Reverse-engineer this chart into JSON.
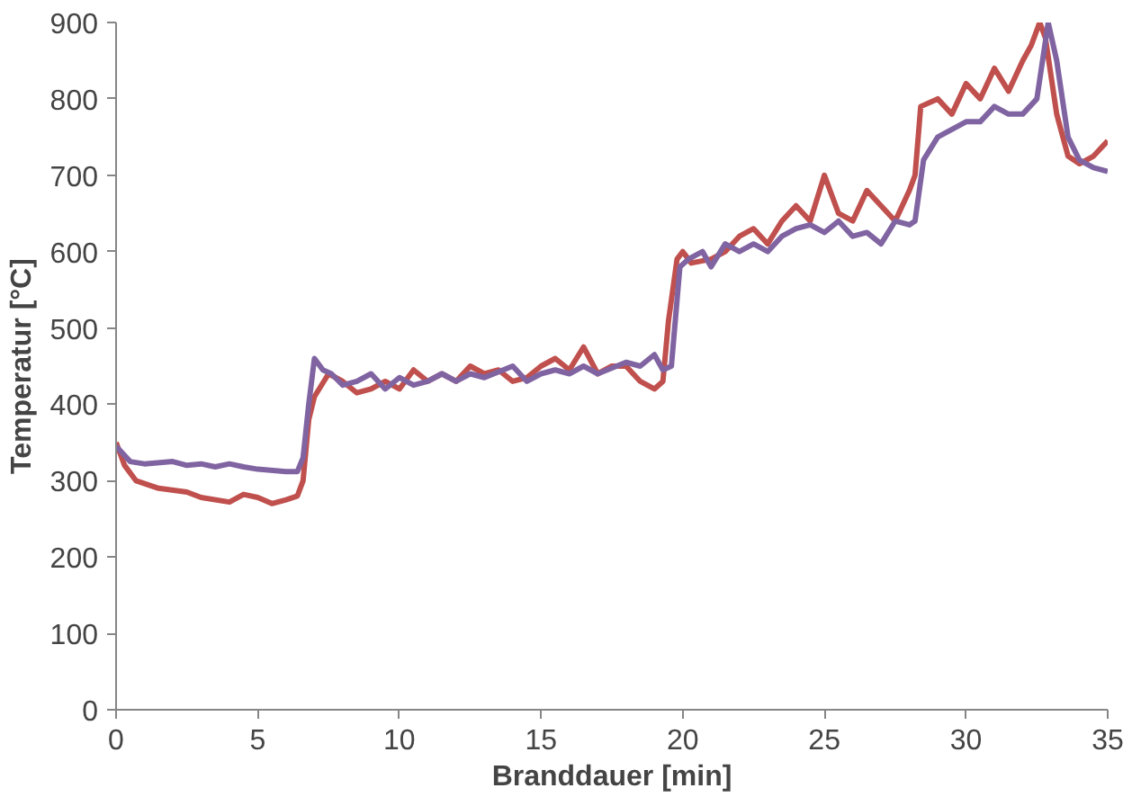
{
  "chart_data": {
    "type": "line",
    "xlabel": "Branddauer [min]",
    "ylabel": "Temperatur [°C]",
    "xlim": [
      0,
      35
    ],
    "xticks": [
      0,
      5,
      10,
      15,
      20,
      25,
      30,
      35
    ],
    "ylim": [
      0,
      900
    ],
    "yticks": [
      0,
      100,
      200,
      300,
      400,
      500,
      600,
      700,
      800,
      900
    ],
    "grid": false,
    "line_style": "solid",
    "series": [
      {
        "color": "#c0504d",
        "x": [
          0,
          0.3,
          0.7,
          1.5,
          2.5,
          3,
          4,
          4.5,
          5,
          5.5,
          6,
          6.4,
          6.6,
          6.8,
          7,
          7.5,
          8,
          8.5,
          9,
          9.5,
          10,
          10.5,
          11,
          11.5,
          12,
          12.5,
          13,
          13.5,
          14,
          14.5,
          15,
          15.5,
          16,
          16.5,
          17,
          17.5,
          18,
          18.5,
          19,
          19.3,
          19.5,
          19.8,
          20,
          20.3,
          21,
          21.5,
          22,
          22.5,
          23,
          23.5,
          24,
          24.5,
          25,
          25.5,
          26,
          26.5,
          27,
          27.5,
          28,
          28.2,
          28.4,
          29,
          29.5,
          30,
          30.5,
          31,
          31.5,
          32,
          32.3,
          32.6,
          32.8,
          33.2,
          33.6,
          34,
          34.5,
          35
        ],
        "values": [
          350,
          320,
          300,
          290,
          285,
          278,
          272,
          282,
          278,
          270,
          275,
          280,
          300,
          380,
          410,
          440,
          430,
          415,
          420,
          430,
          420,
          445,
          430,
          440,
          430,
          450,
          440,
          445,
          430,
          435,
          450,
          460,
          445,
          475,
          440,
          450,
          450,
          430,
          420,
          430,
          510,
          590,
          600,
          585,
          590,
          600,
          620,
          630,
          610,
          640,
          660,
          640,
          700,
          650,
          640,
          680,
          660,
          640,
          680,
          700,
          790,
          800,
          780,
          820,
          800,
          840,
          810,
          850,
          870,
          900,
          880,
          780,
          725,
          715,
          725,
          745
        ]
      },
      {
        "color": "#8064a2",
        "x": [
          0,
          0.5,
          1,
          2,
          2.5,
          3,
          3.5,
          4,
          4.5,
          5,
          6,
          6.4,
          6.6,
          6.8,
          7,
          7.3,
          7.6,
          8,
          8.5,
          9,
          9.5,
          10,
          10.5,
          11,
          11.5,
          12,
          12.5,
          13,
          14,
          14.5,
          15,
          15.5,
          16,
          16.5,
          17,
          18,
          18.5,
          19,
          19.3,
          19.6,
          19.9,
          20.2,
          20.7,
          21,
          21.5,
          22,
          22.5,
          23,
          23.5,
          24,
          24.5,
          25,
          25.5,
          26,
          26.5,
          27,
          27.5,
          28,
          28.2,
          28.5,
          29,
          29.5,
          30,
          30.5,
          31,
          31.5,
          32,
          32.5,
          32.9,
          33.2,
          33.6,
          34,
          34.5,
          35
        ],
        "values": [
          345,
          325,
          322,
          325,
          320,
          322,
          318,
          322,
          318,
          315,
          312,
          312,
          330,
          400,
          460,
          445,
          440,
          425,
          430,
          440,
          420,
          435,
          425,
          430,
          440,
          430,
          440,
          435,
          450,
          430,
          440,
          445,
          440,
          450,
          440,
          455,
          450,
          465,
          445,
          450,
          580,
          590,
          600,
          580,
          610,
          600,
          610,
          600,
          620,
          630,
          635,
          625,
          640,
          620,
          625,
          610,
          640,
          635,
          640,
          720,
          750,
          760,
          770,
          770,
          790,
          780,
          780,
          800,
          900,
          850,
          750,
          720,
          710,
          705
        ]
      }
    ]
  }
}
